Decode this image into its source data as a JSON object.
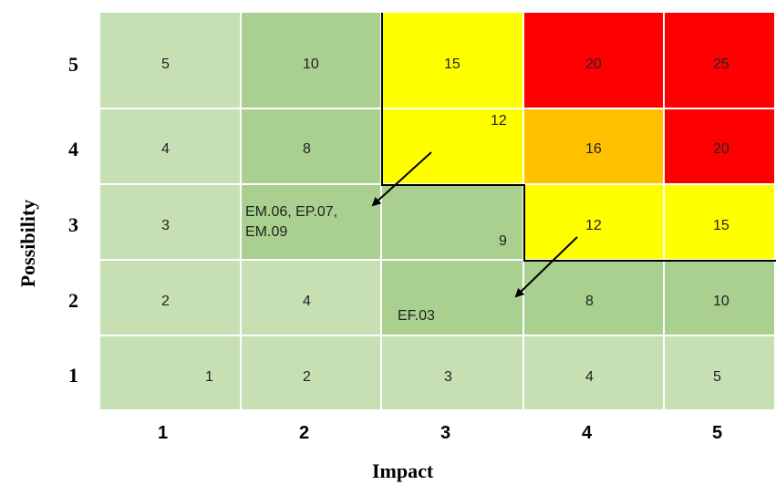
{
  "axes": {
    "x_title": "Impact",
    "y_title": "Possibility",
    "x_ticks": [
      "1",
      "2",
      "3",
      "4",
      "5"
    ],
    "y_ticks": [
      "5",
      "4",
      "3",
      "2",
      "1"
    ]
  },
  "colors": {
    "light_green": "#c6e0b4",
    "mid_green": "#a9d08e",
    "yellow": "#ffff00",
    "orange": "#ffc000",
    "red": "#ff0000"
  },
  "grid": {
    "rows": [
      {
        "possibility": 5,
        "cells": [
          {
            "value": "5",
            "color": "light_green"
          },
          {
            "value": "10",
            "color": "mid_green"
          },
          {
            "value": "15",
            "color": "yellow"
          },
          {
            "value": "20",
            "color": "red"
          },
          {
            "value": "25",
            "color": "red"
          }
        ]
      },
      {
        "possibility": 4,
        "cells": [
          {
            "value": "4",
            "color": "light_green"
          },
          {
            "value": "8",
            "color": "mid_green"
          },
          {
            "value": "12",
            "color": "yellow"
          },
          {
            "value": "16",
            "color": "orange"
          },
          {
            "value": "20",
            "color": "red"
          }
        ]
      },
      {
        "possibility": 3,
        "cells": [
          {
            "value": "3",
            "color": "light_green"
          },
          {
            "value": "",
            "color": "mid_green"
          },
          {
            "value": "9",
            "color": "mid_green"
          },
          {
            "value": "12",
            "color": "yellow"
          },
          {
            "value": "15",
            "color": "yellow"
          }
        ]
      },
      {
        "possibility": 2,
        "cells": [
          {
            "value": "2",
            "color": "light_green"
          },
          {
            "value": "4",
            "color": "light_green"
          },
          {
            "value": "",
            "color": "mid_green"
          },
          {
            "value": "8",
            "color": "mid_green"
          },
          {
            "value": "10",
            "color": "mid_green"
          }
        ]
      },
      {
        "possibility": 1,
        "cells": [
          {
            "value": "1",
            "color": "light_green"
          },
          {
            "value": "2",
            "color": "light_green"
          },
          {
            "value": "3",
            "color": "light_green"
          },
          {
            "value": "4",
            "color": "light_green"
          },
          {
            "value": "5",
            "color": "light_green"
          }
        ]
      }
    ]
  },
  "risk_items": {
    "group_a": {
      "line1": "EM.06, EP.07,",
      "line2": "EM.09"
    },
    "group_b": "EF.03"
  }
}
